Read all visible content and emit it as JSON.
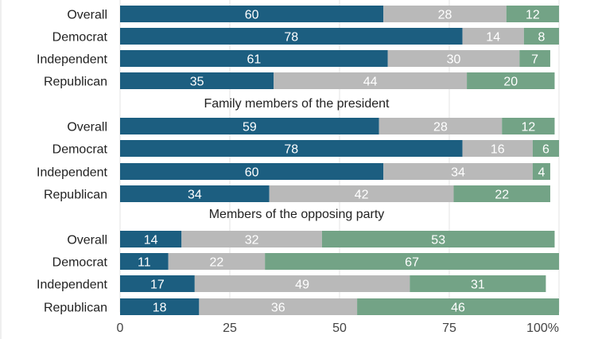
{
  "chart_data": {
    "type": "bar",
    "orientation": "horizontal",
    "stacked": true,
    "xlim": [
      0,
      100
    ],
    "x_ticks": [
      "0",
      "25",
      "50",
      "75",
      "100"
    ],
    "x_unit": "%",
    "grid": true,
    "colors": [
      "#1c5e80",
      "#b9b9b9",
      "#73a386"
    ],
    "groups": [
      {
        "title": "",
        "rows": [
          {
            "category": "Overall",
            "values": [
              60,
              28,
              12
            ]
          },
          {
            "category": "Democrat",
            "values": [
              78,
              14,
              8
            ]
          },
          {
            "category": "Independent",
            "values": [
              61,
              30,
              7
            ]
          },
          {
            "category": "Republican",
            "values": [
              35,
              44,
              20
            ]
          }
        ]
      },
      {
        "title": "Family members of the president",
        "rows": [
          {
            "category": "Overall",
            "values": [
              59,
              28,
              12
            ]
          },
          {
            "category": "Democrat",
            "values": [
              78,
              16,
              6
            ]
          },
          {
            "category": "Independent",
            "values": [
              60,
              34,
              4
            ]
          },
          {
            "category": "Republican",
            "values": [
              34,
              42,
              22
            ]
          }
        ]
      },
      {
        "title": "Members of the opposing party",
        "rows": [
          {
            "category": "Overall",
            "values": [
              14,
              32,
              53
            ]
          },
          {
            "category": "Democrat",
            "values": [
              11,
              22,
              67
            ]
          },
          {
            "category": "Independent",
            "values": [
              17,
              49,
              31
            ]
          },
          {
            "category": "Republican",
            "values": [
              18,
              36,
              46
            ]
          }
        ]
      }
    ]
  }
}
